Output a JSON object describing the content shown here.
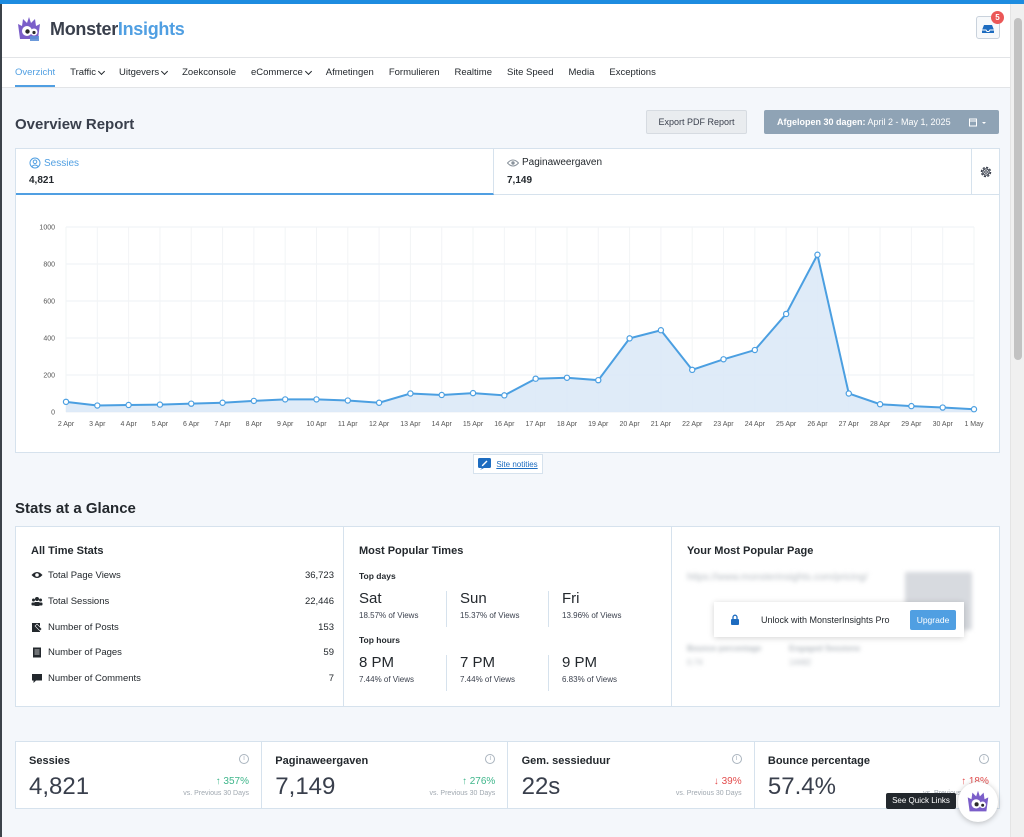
{
  "header": {
    "logo_part1": "Monster",
    "logo_part2": "Insights",
    "notification_count": "5"
  },
  "nav": {
    "items": [
      {
        "label": "Overzicht",
        "active": true,
        "dropdown": false
      },
      {
        "label": "Traffic",
        "dropdown": true
      },
      {
        "label": "Uitgevers",
        "dropdown": true
      },
      {
        "label": "Zoekconsole",
        "dropdown": false
      },
      {
        "label": "eCommerce",
        "dropdown": true
      },
      {
        "label": "Afmetingen",
        "dropdown": false
      },
      {
        "label": "Formulieren",
        "dropdown": false
      },
      {
        "label": "Realtime",
        "dropdown": false
      },
      {
        "label": "Site Speed",
        "dropdown": false
      },
      {
        "label": "Media",
        "dropdown": false
      },
      {
        "label": "Exceptions",
        "dropdown": false
      }
    ]
  },
  "report": {
    "title": "Overview Report",
    "export_label": "Export PDF Report",
    "date_prefix": "Afgelopen 30 dagen:",
    "date_range": "April 2 - May 1, 2025"
  },
  "tabs": {
    "sessions": {
      "label": "Sessies",
      "value": "4,821"
    },
    "pageviews": {
      "label": "Paginaweergaven",
      "value": "7,149"
    }
  },
  "chart_data": {
    "type": "area",
    "categories": [
      "2 Apr",
      "3 Apr",
      "4 Apr",
      "5 Apr",
      "6 Apr",
      "7 Apr",
      "8 Apr",
      "9 Apr",
      "10 Apr",
      "11 Apr",
      "12 Apr",
      "13 Apr",
      "14 Apr",
      "15 Apr",
      "16 Apr",
      "17 Apr",
      "18 Apr",
      "19 Apr",
      "20 Apr",
      "21 Apr",
      "22 Apr",
      "23 Apr",
      "24 Apr",
      "25 Apr",
      "26 Apr",
      "27 Apr",
      "28 Apr",
      "29 Apr",
      "30 Apr",
      "1 May"
    ],
    "values": [
      55,
      35,
      38,
      40,
      45,
      50,
      60,
      68,
      68,
      62,
      50,
      100,
      92,
      102,
      90,
      180,
      185,
      172,
      398,
      442,
      228,
      285,
      335,
      530,
      850,
      100,
      42,
      32,
      24,
      15
    ],
    "yticks": [
      0,
      200,
      400,
      600,
      800,
      1000
    ],
    "ylim": [
      0,
      1000
    ],
    "color": "#4b9fe1",
    "fill": "#dbe9f7"
  },
  "site_notes": "Site notities",
  "glance": {
    "title": "Stats at a Glance",
    "all_time": {
      "title": "All Time Stats",
      "rows": [
        {
          "label": "Total Page Views",
          "value": "36,723",
          "icon": "eye-icon"
        },
        {
          "label": "Total Sessions",
          "value": "22,446",
          "icon": "users-icon"
        },
        {
          "label": "Number of Posts",
          "value": "153",
          "icon": "posts-icon"
        },
        {
          "label": "Number of Pages",
          "value": "59",
          "icon": "page-icon"
        },
        {
          "label": "Number of Comments",
          "value": "7",
          "icon": "comment-icon"
        }
      ]
    },
    "popular_times": {
      "title": "Most Popular Times",
      "top_days_label": "Top days",
      "top_hours_label": "Top hours",
      "days": [
        {
          "name": "Sat",
          "pct": "18.57% of Views"
        },
        {
          "name": "Sun",
          "pct": "15.37% of Views"
        },
        {
          "name": "Fri",
          "pct": "13.96% of Views"
        }
      ],
      "hours": [
        {
          "name": "8 PM",
          "pct": "7.44% of Views"
        },
        {
          "name": "7 PM",
          "pct": "7.44% of Views"
        },
        {
          "name": "9 PM",
          "pct": "6.83% of Views"
        }
      ]
    },
    "popular_page": {
      "title": "Your Most Popular Page",
      "blur_url": "https://www.monsterinsights.com/pricing/",
      "blur_label1": "Bounce percentage",
      "blur_label2": "Engaged Sessions",
      "blur_val1": "0.74",
      "blur_val2": "14482",
      "unlock_text": "Unlock with MonsterInsights Pro",
      "upgrade_label": "Upgrade"
    }
  },
  "kpis": [
    {
      "title": "Sessies",
      "value": "4,821",
      "change": "357%",
      "dir": "up",
      "prev": "vs. Previous 30 Days"
    },
    {
      "title": "Paginaweergaven",
      "value": "7,149",
      "change": "276%",
      "dir": "up",
      "prev": "vs. Previous 30 Days"
    },
    {
      "title": "Gem. sessieduur",
      "value": "22s",
      "change": "39%",
      "dir": "down",
      "prev": "vs. Previous 30 Days"
    },
    {
      "title": "Bounce percentage",
      "value": "57.4%",
      "change": "18%",
      "dir": "up-bad",
      "prev": "vs. Previous 30 Days"
    }
  ],
  "quick_links": "See Quick Links"
}
